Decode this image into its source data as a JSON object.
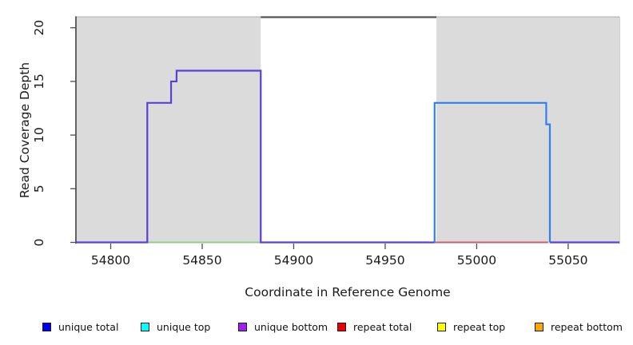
{
  "chart_data": {
    "type": "line",
    "title": "",
    "xlabel": "Coordinate in Reference Genome",
    "ylabel": "Read Coverage Depth",
    "xlim": [
      54781,
      55078
    ],
    "ylim": [
      0,
      21
    ],
    "x_ticks": [
      54800,
      54850,
      54900,
      54950,
      55000,
      55050
    ],
    "y_ticks": [
      0,
      5,
      10,
      15,
      20
    ],
    "grid": false,
    "legend_position": "bottom",
    "shaded_regions": [
      {
        "name": "unique-alignment-region-left",
        "x0": 54781,
        "x1": 54882,
        "color": "#dbdbdb"
      },
      {
        "name": "unique-alignment-region-right",
        "x0": 54978,
        "x1": 55078,
        "color": "#dbdbdb"
      }
    ],
    "top_border_gap_segment": {
      "x0": 54882,
      "x1": 54978,
      "y": 21
    },
    "series": [
      {
        "name": "zero-baseline-green",
        "color": "#8fce8f",
        "width": 2,
        "points": [
          [
            54820,
            0
          ],
          [
            54882,
            0
          ]
        ]
      },
      {
        "name": "unique-coverage-left-purple",
        "color": "#5a40d8",
        "width": 2.2,
        "points": [
          [
            54781,
            0
          ],
          [
            54820,
            0
          ],
          [
            54820,
            13
          ],
          [
            54833,
            13
          ],
          [
            54833,
            15
          ],
          [
            54836,
            15
          ],
          [
            54836,
            16
          ],
          [
            54882,
            16
          ],
          [
            54882,
            0
          ],
          [
            54977,
            0
          ]
        ]
      },
      {
        "name": "zero-baseline-right-purple",
        "color": "#5a40d8",
        "width": 2.2,
        "points": [
          [
            55040,
            0
          ],
          [
            55078,
            0
          ]
        ]
      },
      {
        "name": "zero-baseline-red",
        "color": "#cd5c6c",
        "width": 2,
        "points": [
          [
            54977,
            0
          ],
          [
            55039,
            0
          ]
        ]
      },
      {
        "name": "unique-coverage-right-blue",
        "color": "#2e7ff0",
        "width": 2.2,
        "points": [
          [
            54977,
            0
          ],
          [
            54977,
            13
          ],
          [
            55038,
            13
          ],
          [
            55038,
            11
          ],
          [
            55040,
            11
          ],
          [
            55040,
            0
          ]
        ]
      }
    ]
  },
  "legend": {
    "items": [
      {
        "label": "unique total",
        "color": "#0000ee"
      },
      {
        "label": "unique top",
        "color": "#00ffff"
      },
      {
        "label": "unique bottom",
        "color": "#a020f0"
      },
      {
        "label": "repeat total",
        "color": "#ee0000"
      },
      {
        "label": "repeat top",
        "color": "#ffff00"
      },
      {
        "label": "repeat bottom",
        "color": "#ffa500"
      }
    ]
  }
}
